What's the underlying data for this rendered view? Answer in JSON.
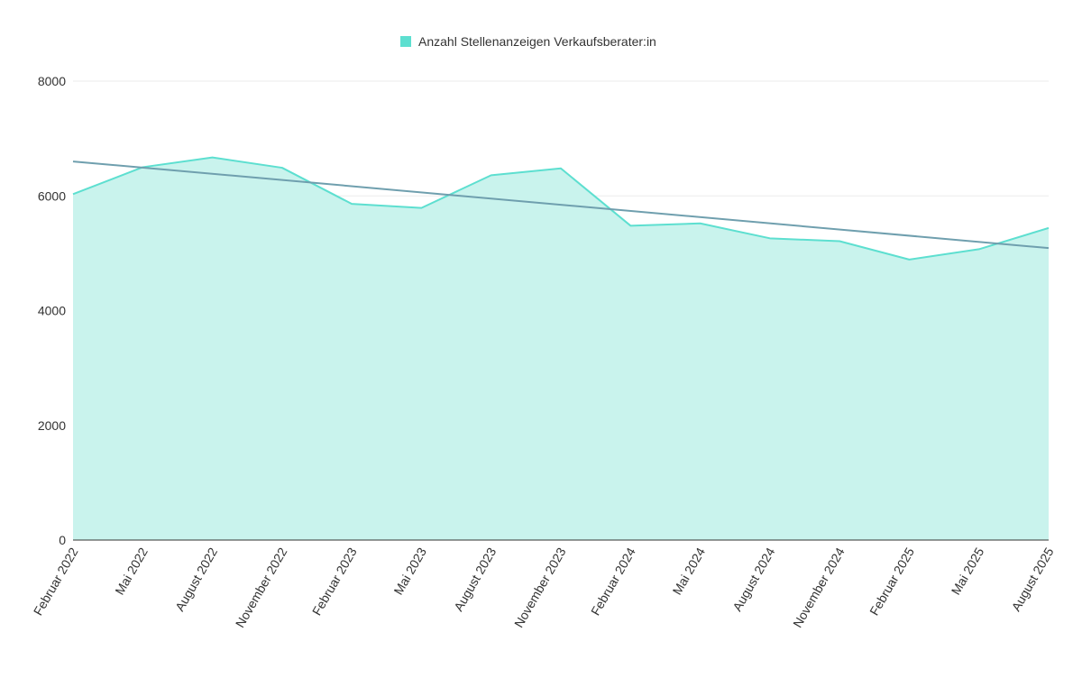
{
  "chart_data": {
    "type": "area",
    "title": "",
    "xlabel": "",
    "ylabel": "",
    "categories": [
      "Februar 2022",
      "Mai 2022",
      "August 2022",
      "November 2022",
      "Februar 2023",
      "Mai 2023",
      "August 2023",
      "November 2023",
      "Februar 2024",
      "Mai 2024",
      "August 2024",
      "November 2024",
      "Februar 2025",
      "Mai 2025",
      "August 2025"
    ],
    "series": [
      {
        "name": "Anzahl Stellenanzeigen Verkaufsberater:in",
        "color": "#5ddfd0",
        "fill": "#c9f3ed",
        "values": [
          6030,
          6500,
          6670,
          6490,
          5860,
          5790,
          6360,
          6480,
          5480,
          5520,
          5260,
          5210,
          4890,
          5070,
          5440
        ]
      }
    ],
    "trendline": {
      "color": "#6f9fae",
      "start": 6600,
      "end": 5090
    },
    "ylim": [
      0,
      8000
    ],
    "yticks": [
      0,
      2000,
      4000,
      6000,
      8000
    ],
    "grid": true,
    "legend_position": "top-center"
  }
}
